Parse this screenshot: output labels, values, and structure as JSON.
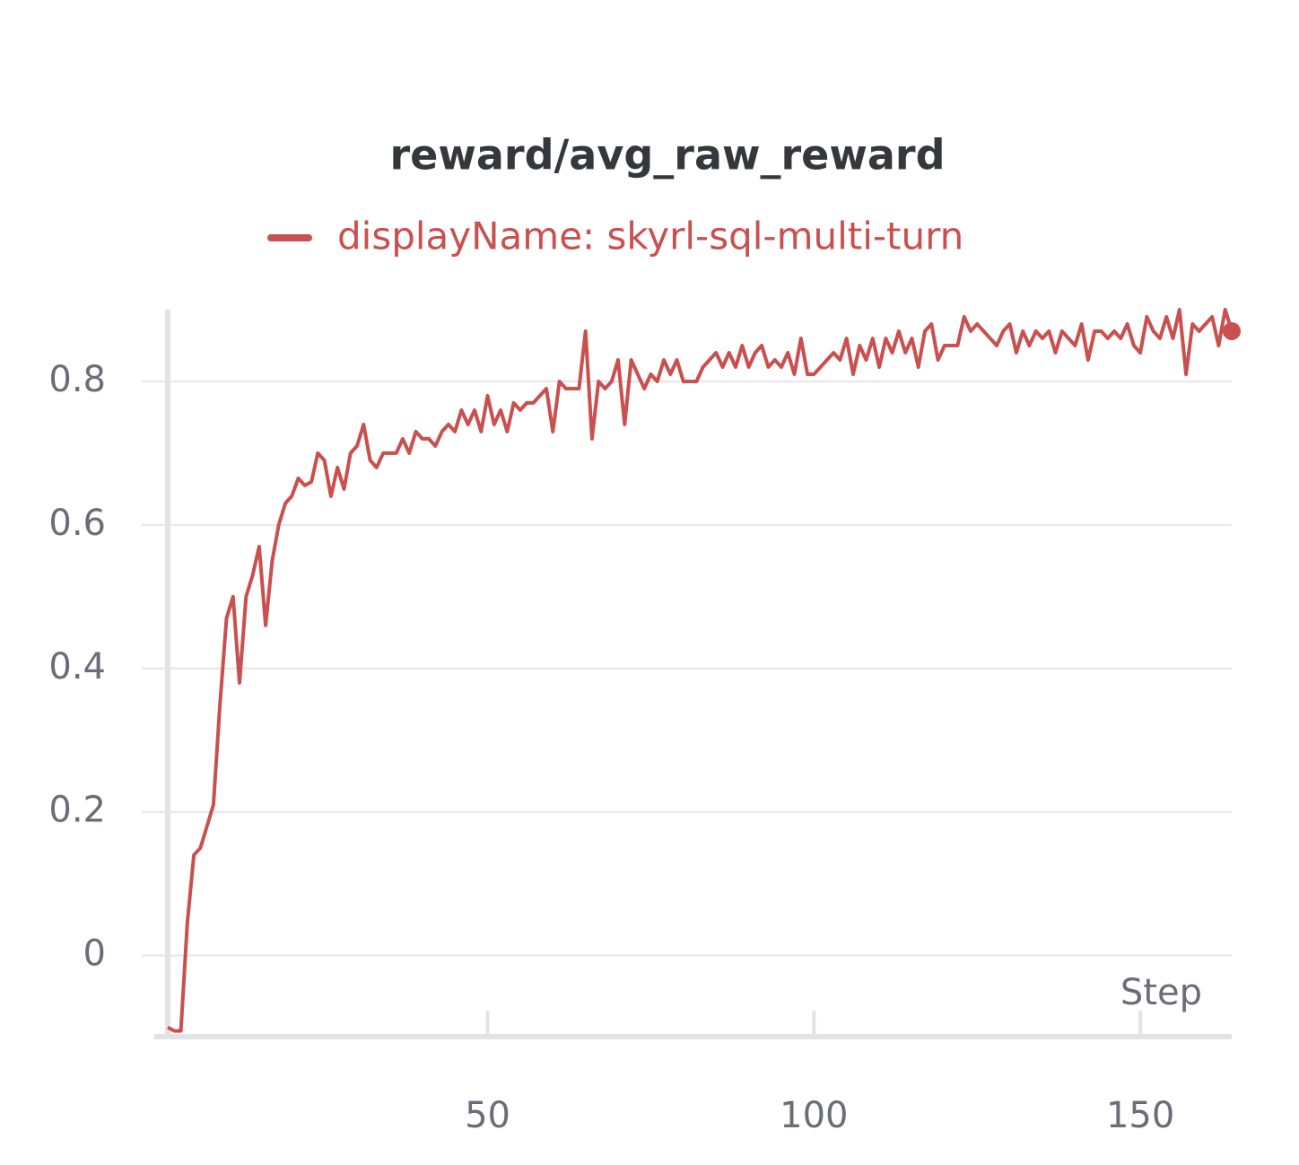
{
  "chart_data": {
    "type": "line",
    "title": "reward/avg_raw_reward",
    "x_label": "Step",
    "x": [
      1,
      2,
      3,
      4,
      5,
      6,
      7,
      8,
      9,
      10,
      11,
      12,
      13,
      14,
      15,
      16,
      17,
      18,
      19,
      20,
      21,
      22,
      23,
      24,
      25,
      26,
      27,
      28,
      29,
      30,
      31,
      32,
      33,
      34,
      35,
      36,
      37,
      38,
      39,
      40,
      41,
      42,
      43,
      44,
      45,
      46,
      47,
      48,
      49,
      50,
      51,
      52,
      53,
      54,
      55,
      56,
      57,
      58,
      59,
      60,
      61,
      62,
      63,
      64,
      65,
      66,
      67,
      68,
      69,
      70,
      71,
      72,
      73,
      74,
      75,
      76,
      77,
      78,
      79,
      80,
      81,
      82,
      83,
      84,
      85,
      86,
      87,
      88,
      89,
      90,
      91,
      92,
      93,
      94,
      95,
      96,
      97,
      98,
      99,
      100,
      101,
      102,
      103,
      104,
      105,
      106,
      107,
      108,
      109,
      110,
      111,
      112,
      113,
      114,
      115,
      116,
      117,
      118,
      119,
      120,
      121,
      122,
      123,
      124,
      125,
      126,
      127,
      128,
      129,
      130,
      131,
      132,
      133,
      134,
      135,
      136,
      137,
      138,
      139,
      140,
      141,
      142,
      143,
      144,
      145,
      146,
      147,
      148,
      149,
      150,
      151,
      152,
      153,
      154,
      155,
      156,
      157,
      158,
      159,
      160,
      161,
      162,
      163,
      164
    ],
    "series": [
      {
        "name": "displayName: skyrl-sql-multi-turn",
        "color": "#c9504f",
        "values": [
          -0.1,
          -0.105,
          -0.105,
          0.045,
          0.14,
          0.15,
          0.18,
          0.21,
          0.35,
          0.47,
          0.5,
          0.38,
          0.5,
          0.53,
          0.57,
          0.46,
          0.55,
          0.6,
          0.63,
          0.64,
          0.665,
          0.655,
          0.66,
          0.7,
          0.69,
          0.64,
          0.68,
          0.65,
          0.7,
          0.71,
          0.74,
          0.69,
          0.68,
          0.7,
          0.7,
          0.7,
          0.72,
          0.7,
          0.73,
          0.72,
          0.72,
          0.71,
          0.73,
          0.74,
          0.73,
          0.76,
          0.74,
          0.76,
          0.73,
          0.78,
          0.74,
          0.76,
          0.73,
          0.77,
          0.76,
          0.77,
          0.77,
          0.78,
          0.79,
          0.73,
          0.8,
          0.79,
          0.79,
          0.79,
          0.87,
          0.72,
          0.8,
          0.79,
          0.8,
          0.83,
          0.74,
          0.83,
          0.81,
          0.79,
          0.81,
          0.8,
          0.83,
          0.81,
          0.83,
          0.8,
          0.8,
          0.8,
          0.82,
          0.83,
          0.84,
          0.82,
          0.84,
          0.82,
          0.85,
          0.82,
          0.84,
          0.85,
          0.82,
          0.83,
          0.82,
          0.84,
          0.81,
          0.86,
          0.81,
          0.81,
          0.82,
          0.83,
          0.84,
          0.83,
          0.86,
          0.81,
          0.85,
          0.83,
          0.86,
          0.82,
          0.86,
          0.84,
          0.87,
          0.84,
          0.86,
          0.82,
          0.87,
          0.88,
          0.83,
          0.85,
          0.85,
          0.85,
          0.89,
          0.87,
          0.88,
          0.87,
          0.86,
          0.85,
          0.87,
          0.88,
          0.84,
          0.87,
          0.85,
          0.87,
          0.86,
          0.87,
          0.84,
          0.87,
          0.86,
          0.85,
          0.88,
          0.83,
          0.87,
          0.87,
          0.86,
          0.87,
          0.86,
          0.88,
          0.85,
          0.84,
          0.89,
          0.87,
          0.86,
          0.89,
          0.86,
          0.9,
          0.81,
          0.88,
          0.87,
          0.88,
          0.89,
          0.85,
          0.9,
          0.87
        ]
      }
    ],
    "xlim": [
      1,
      164
    ],
    "xticks": [
      50,
      100,
      150
    ],
    "ylim": [
      -0.113,
      0.9
    ],
    "yticks": [
      0,
      0.2,
      0.4,
      0.6,
      0.8
    ],
    "grid": true
  }
}
